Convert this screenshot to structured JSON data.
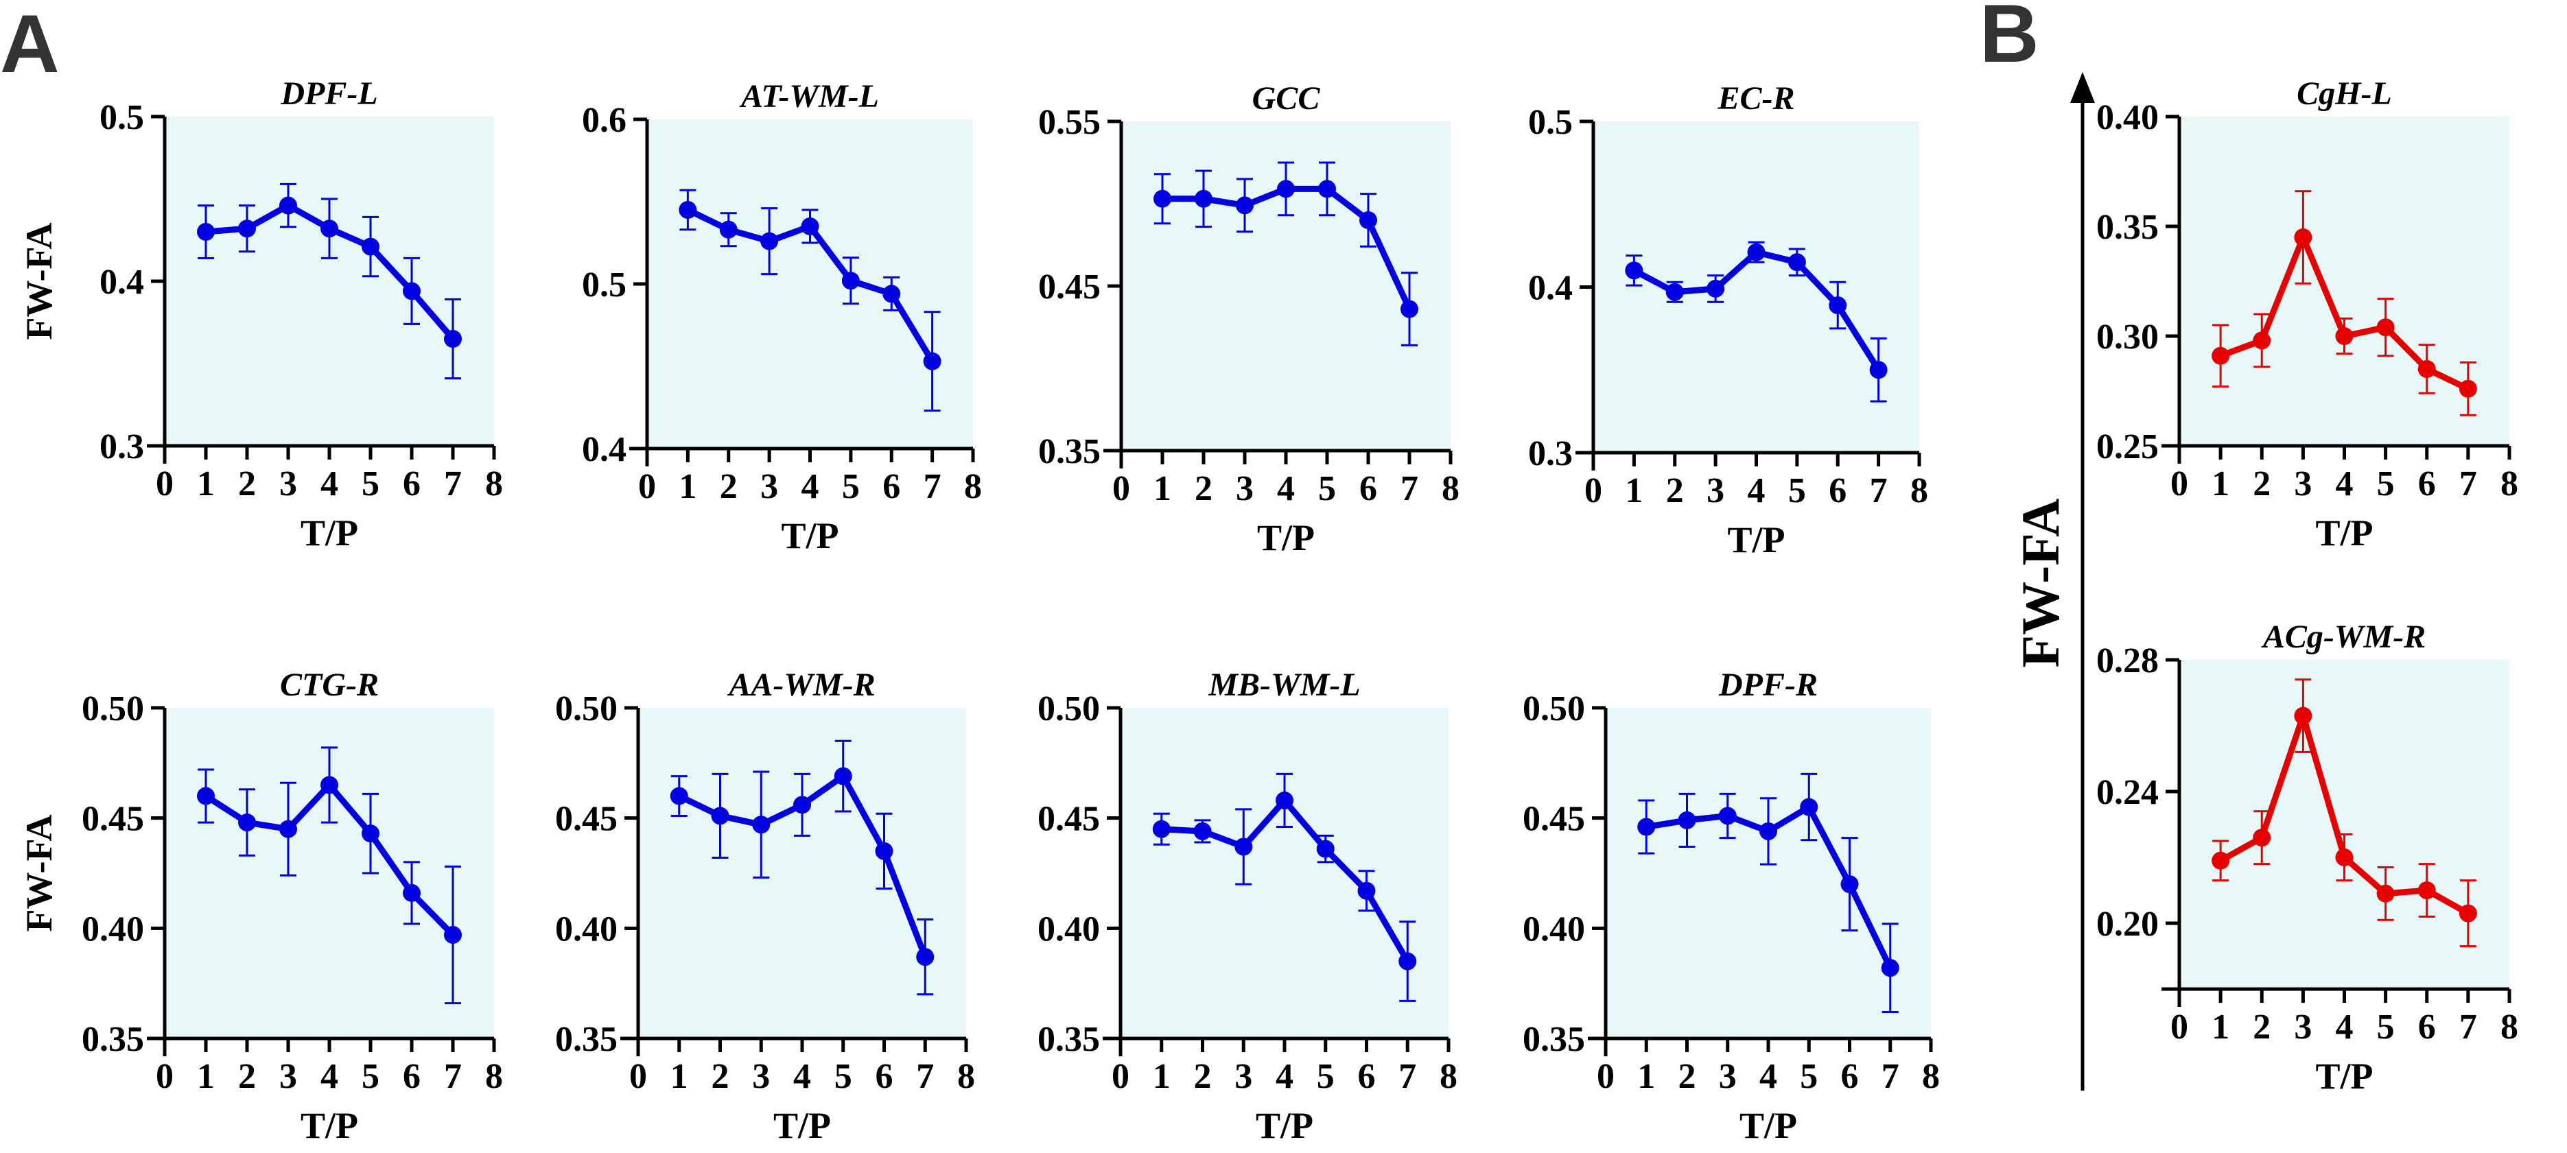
{
  "panel_labels": [
    "A",
    "B"
  ],
  "shared_ylabel": "FW-FA",
  "colors": {
    "blue": "#0000e0",
    "red": "#e80000",
    "plot_bg": "#e8f7f7"
  },
  "chart_data": [
    {
      "type": "line",
      "title": "DPF-L",
      "xlabel": "T/P",
      "ylabel": "FW-FA",
      "xlim": [
        0,
        8
      ],
      "xticks": [
        "0",
        "1",
        "2",
        "3",
        "4",
        "5",
        "6",
        "7",
        "8"
      ],
      "ylim": [
        0.3,
        0.5
      ],
      "yticks": [
        "0.3",
        "0.4",
        "0.5"
      ],
      "color": "blue",
      "x": [
        1,
        2,
        3,
        4,
        5,
        6,
        7
      ],
      "y": [
        0.43,
        0.432,
        0.446,
        0.432,
        0.421,
        0.394,
        0.365
      ],
      "err": [
        0.016,
        0.014,
        0.013,
        0.018,
        0.018,
        0.02,
        0.024
      ]
    },
    {
      "type": "line",
      "title": "AT-WM-L",
      "xlabel": "T/P",
      "ylabel": "",
      "xlim": [
        0,
        8
      ],
      "xticks": [
        "0",
        "1",
        "2",
        "3",
        "4",
        "5",
        "6",
        "7",
        "8"
      ],
      "ylim": [
        0.4,
        0.6
      ],
      "yticks": [
        "0.4",
        "0.5",
        "0.6"
      ],
      "color": "blue",
      "x": [
        1,
        2,
        3,
        4,
        5,
        6,
        7
      ],
      "y": [
        0.545,
        0.533,
        0.526,
        0.535,
        0.502,
        0.494,
        0.453
      ],
      "err": [
        0.012,
        0.01,
        0.02,
        0.01,
        0.014,
        0.01,
        0.03
      ]
    },
    {
      "type": "line",
      "title": "GCC",
      "xlabel": "T/P",
      "ylabel": "",
      "xlim": [
        0,
        8
      ],
      "xticks": [
        "0",
        "1",
        "2",
        "3",
        "4",
        "5",
        "6",
        "7",
        "8"
      ],
      "ylim": [
        0.35,
        0.55
      ],
      "yticks": [
        "0.35",
        "0.45",
        "0.55"
      ],
      "color": "blue",
      "x": [
        1,
        2,
        3,
        4,
        5,
        6,
        7
      ],
      "y": [
        0.503,
        0.503,
        0.499,
        0.509,
        0.509,
        0.49,
        0.436
      ],
      "err": [
        0.015,
        0.017,
        0.016,
        0.016,
        0.016,
        0.016,
        0.022
      ]
    },
    {
      "type": "line",
      "title": "EC-R",
      "xlabel": "T/P",
      "ylabel": "",
      "xlim": [
        0,
        8
      ],
      "xticks": [
        "0",
        "1",
        "2",
        "3",
        "4",
        "5",
        "6",
        "7",
        "8"
      ],
      "ylim": [
        0.3,
        0.5
      ],
      "yticks": [
        "0.3",
        "0.4",
        "0.5"
      ],
      "color": "blue",
      "x": [
        1,
        2,
        3,
        4,
        5,
        6,
        7
      ],
      "y": [
        0.41,
        0.397,
        0.399,
        0.421,
        0.415,
        0.389,
        0.35
      ],
      "err": [
        0.009,
        0.006,
        0.008,
        0.006,
        0.008,
        0.014,
        0.019
      ]
    },
    {
      "type": "line",
      "title": "CTG-R",
      "xlabel": "T/P",
      "ylabel": "FW-FA",
      "xlim": [
        0,
        8
      ],
      "xticks": [
        "0",
        "1",
        "2",
        "3",
        "4",
        "5",
        "6",
        "7",
        "8"
      ],
      "ylim": [
        0.35,
        0.5
      ],
      "yticks": [
        "0.35",
        "0.40",
        "0.45",
        "0.50"
      ],
      "color": "blue",
      "x": [
        1,
        2,
        3,
        4,
        5,
        6,
        7
      ],
      "y": [
        0.46,
        0.448,
        0.445,
        0.465,
        0.443,
        0.416,
        0.397
      ],
      "err": [
        0.012,
        0.015,
        0.021,
        0.017,
        0.018,
        0.014,
        0.031
      ]
    },
    {
      "type": "line",
      "title": "AA-WM-R",
      "xlabel": "T/P",
      "ylabel": "",
      "xlim": [
        0,
        8
      ],
      "xticks": [
        "0",
        "1",
        "2",
        "3",
        "4",
        "5",
        "6",
        "7",
        "8"
      ],
      "ylim": [
        0.35,
        0.5
      ],
      "yticks": [
        "0.35",
        "0.40",
        "0.45",
        "0.50"
      ],
      "color": "blue",
      "x": [
        1,
        2,
        3,
        4,
        5,
        6,
        7
      ],
      "y": [
        0.46,
        0.451,
        0.447,
        0.456,
        0.469,
        0.435,
        0.387
      ],
      "err": [
        0.009,
        0.019,
        0.024,
        0.014,
        0.016,
        0.017,
        0.017
      ]
    },
    {
      "type": "line",
      "title": "MB-WM-L",
      "xlabel": "T/P",
      "ylabel": "",
      "xlim": [
        0,
        8
      ],
      "xticks": [
        "0",
        "1",
        "2",
        "3",
        "4",
        "5",
        "6",
        "7",
        "8"
      ],
      "ylim": [
        0.35,
        0.5
      ],
      "yticks": [
        "0.35",
        "0.40",
        "0.45",
        "0.50"
      ],
      "color": "blue",
      "x": [
        1,
        2,
        3,
        4,
        5,
        6,
        7
      ],
      "y": [
        0.445,
        0.444,
        0.437,
        0.458,
        0.436,
        0.417,
        0.385
      ],
      "err": [
        0.007,
        0.005,
        0.017,
        0.012,
        0.006,
        0.009,
        0.018
      ]
    },
    {
      "type": "line",
      "title": "DPF-R",
      "xlabel": "T/P",
      "ylabel": "",
      "xlim": [
        0,
        8
      ],
      "xticks": [
        "0",
        "1",
        "2",
        "3",
        "4",
        "5",
        "6",
        "7",
        "8"
      ],
      "ylim": [
        0.35,
        0.5
      ],
      "yticks": [
        "0.35",
        "0.40",
        "0.45",
        "0.50"
      ],
      "color": "blue",
      "x": [
        1,
        2,
        3,
        4,
        5,
        6,
        7
      ],
      "y": [
        0.446,
        0.449,
        0.451,
        0.444,
        0.455,
        0.42,
        0.382
      ],
      "err": [
        0.012,
        0.012,
        0.01,
        0.015,
        0.015,
        0.021,
        0.02
      ]
    },
    {
      "type": "line",
      "title": "CgH-L",
      "xlabel": "T/P",
      "ylabel": "",
      "xlim": [
        0,
        8
      ],
      "xticks": [
        "0",
        "1",
        "2",
        "3",
        "4",
        "5",
        "6",
        "7",
        "8"
      ],
      "ylim": [
        0.25,
        0.4
      ],
      "yticks": [
        "0.25",
        "0.30",
        "0.35",
        "0.40"
      ],
      "color": "red",
      "x": [
        1,
        2,
        3,
        4,
        5,
        6,
        7
      ],
      "y": [
        0.291,
        0.298,
        0.345,
        0.3,
        0.304,
        0.285,
        0.276
      ],
      "err": [
        0.014,
        0.012,
        0.021,
        0.008,
        0.013,
        0.011,
        0.012
      ]
    },
    {
      "type": "line",
      "title": "ACg-WM-R",
      "xlabel": "T/P",
      "ylabel": "",
      "xlim": [
        0,
        8
      ],
      "xticks": [
        "0",
        "1",
        "2",
        "3",
        "4",
        "5",
        "6",
        "7",
        "8"
      ],
      "ylim": [
        0.18,
        0.28
      ],
      "yticks": [
        "0.20",
        "0.24",
        "0.28"
      ],
      "color": "red",
      "x": [
        1,
        2,
        3,
        4,
        5,
        6,
        7
      ],
      "y": [
        0.219,
        0.226,
        0.263,
        0.22,
        0.209,
        0.21,
        0.203
      ],
      "err": [
        0.006,
        0.008,
        0.011,
        0.007,
        0.008,
        0.008,
        0.01
      ]
    }
  ]
}
